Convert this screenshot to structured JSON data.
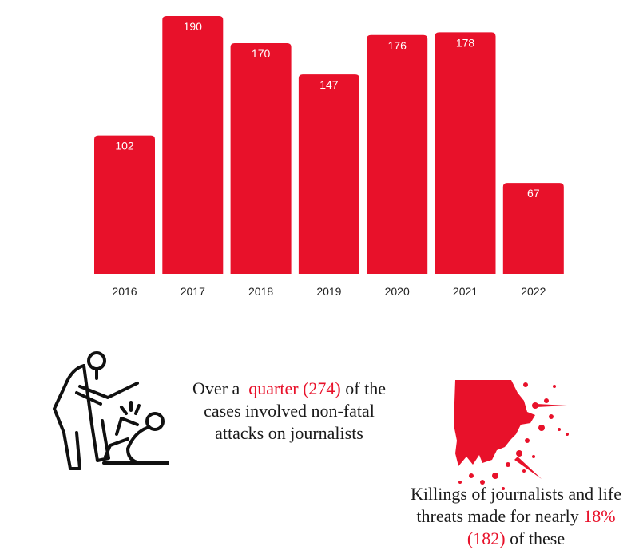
{
  "chart_data": {
    "type": "bar",
    "categories": [
      "2016",
      "2017",
      "2018",
      "2019",
      "2020",
      "2021",
      "2022"
    ],
    "values": [
      102,
      190,
      170,
      147,
      176,
      178,
      67
    ],
    "color": "#e8112a",
    "ylim": [
      0,
      190
    ]
  },
  "notes": [
    {
      "before": "Over a",
      "highlight": "quarter (274)",
      "after": "of the cases involved non-fatal attacks on journalists"
    },
    {
      "before": "Killings of journalists and life threats made for nearly",
      "highlight": "18% (182)",
      "after": "of these"
    }
  ]
}
